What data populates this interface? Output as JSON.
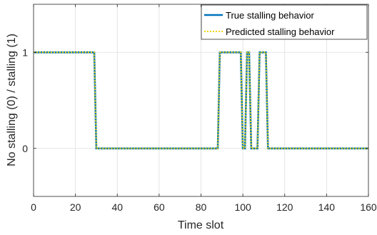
{
  "chart_data": {
    "type": "line",
    "xlabel": "Time slot",
    "ylabel": "No stalling (0) / stalling (1)",
    "xlim": [
      0,
      160
    ],
    "ylim": [
      -0.5,
      1.5
    ],
    "xticks": [
      0,
      20,
      40,
      60,
      80,
      100,
      120,
      140,
      160
    ],
    "yticks": [
      0,
      1
    ],
    "xtick_labels": [
      "0",
      "20",
      "40",
      "60",
      "80",
      "100",
      "120",
      "140",
      "160"
    ],
    "ytick_labels": [
      "0",
      "1"
    ],
    "grid": true,
    "legend_position": "top-right",
    "series": [
      {
        "name": "True stalling behavior",
        "color": "#0072BD",
        "style": "solid",
        "x": [
          0,
          29,
          30,
          88,
          89,
          99,
          100,
          101,
          102,
          103,
          104,
          105,
          106,
          107,
          108,
          109,
          110,
          111,
          112,
          160
        ],
        "y": [
          1,
          1,
          0,
          0,
          1,
          1,
          0,
          0,
          1,
          1,
          0,
          0,
          0,
          0,
          1,
          1,
          1,
          1,
          0,
          0
        ]
      },
      {
        "name": "Predicted stalling behavior",
        "color": "#EDD500",
        "style": "dotted",
        "x": [
          0,
          29,
          30,
          88,
          89,
          99,
          100,
          101,
          102,
          103,
          104,
          105,
          106,
          107,
          108,
          109,
          110,
          111,
          112,
          160
        ],
        "y": [
          1,
          1,
          0,
          0,
          1,
          1,
          0,
          0,
          1,
          1,
          0,
          0,
          0,
          0,
          1,
          1,
          1,
          1,
          0,
          0
        ]
      }
    ]
  }
}
